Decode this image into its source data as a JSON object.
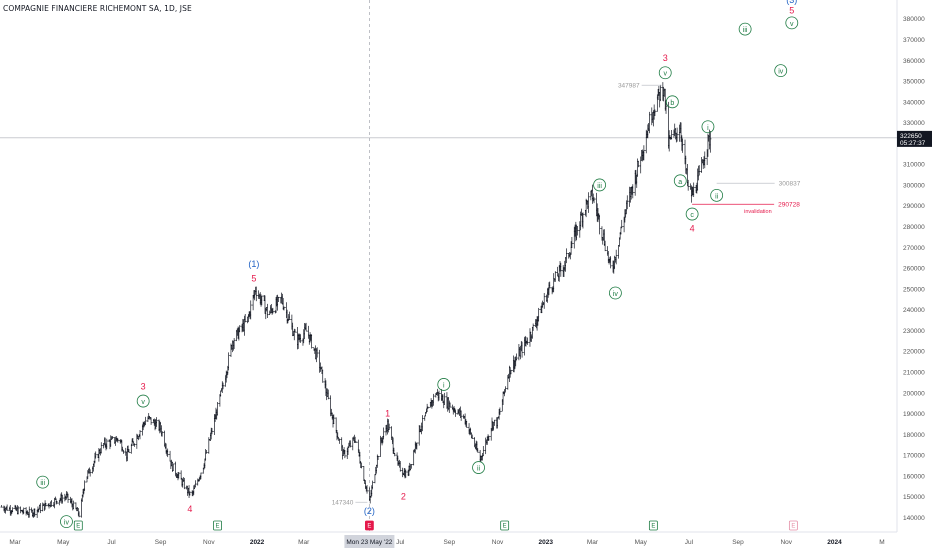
{
  "header": {
    "title": "COMPAGNIE FINANCIERE RICHEMONT SA, 1D, JSE"
  },
  "price_tag": {
    "price": "322650",
    "countdown": "05:27:37"
  },
  "colors": {
    "wave_red": "#e5194b",
    "wave_green": "#1e7b43",
    "wave_blue": "#2162c4",
    "bar": "#131722",
    "axis_text": "#555555",
    "invalidation": "#e5194b"
  },
  "chart_data": {
    "type": "ohlc",
    "x_axis_type": "date",
    "xlim": [
      "2021-02-10",
      "2024-03-20"
    ],
    "ylim": [
      133000,
      389000
    ],
    "y_ticks": [
      140000,
      150000,
      160000,
      170000,
      180000,
      190000,
      200000,
      210000,
      220000,
      230000,
      240000,
      250000,
      260000,
      270000,
      280000,
      290000,
      300000,
      310000,
      320000,
      330000,
      340000,
      350000,
      360000,
      370000,
      380000
    ],
    "x_ticks": [
      {
        "label": "Mar",
        "date": "2021-03-01"
      },
      {
        "label": "May",
        "date": "2021-05-01"
      },
      {
        "label": "Jul",
        "date": "2021-07-01"
      },
      {
        "label": "Sep",
        "date": "2021-09-01"
      },
      {
        "label": "Nov",
        "date": "2021-11-01"
      },
      {
        "label": "2022",
        "date": "2022-01-01",
        "bold": true
      },
      {
        "label": "Mar",
        "date": "2022-03-01"
      },
      {
        "label": "Jul",
        "date": "2022-07-01"
      },
      {
        "label": "Sep",
        "date": "2022-09-01"
      },
      {
        "label": "Nov",
        "date": "2022-11-01"
      },
      {
        "label": "2023",
        "date": "2023-01-01",
        "bold": true
      },
      {
        "label": "Mar",
        "date": "2023-03-01"
      },
      {
        "label": "May",
        "date": "2023-05-01"
      },
      {
        "label": "Jul",
        "date": "2023-07-01"
      },
      {
        "label": "Sep",
        "date": "2023-09-01"
      },
      {
        "label": "Nov",
        "date": "2023-11-01"
      },
      {
        "label": "2024",
        "date": "2024-01-01",
        "bold": true
      },
      {
        "label": "M",
        "date": "2024-03-01"
      }
    ],
    "crosshair": {
      "date": "2022-05-23",
      "label": "Mon 23 May '22",
      "price": 322650
    },
    "price_path": [
      [
        "2021-02-12",
        145000
      ],
      [
        "2021-03-20",
        142000
      ],
      [
        "2021-04-20",
        148000
      ],
      [
        "2021-05-05",
        150000
      ],
      [
        "2021-05-22",
        141000
      ],
      [
        "2021-05-28",
        158000
      ],
      [
        "2021-06-20",
        175000
      ],
      [
        "2021-07-10",
        178000
      ],
      [
        "2021-07-20",
        170000
      ],
      [
        "2021-08-15",
        188000
      ],
      [
        "2021-09-01",
        183000
      ],
      [
        "2021-09-15",
        165000
      ],
      [
        "2021-10-10",
        150000
      ],
      [
        "2021-10-25",
        165000
      ],
      [
        "2021-11-20",
        205000
      ],
      [
        "2021-12-01",
        225000
      ],
      [
        "2021-12-20",
        235000
      ],
      [
        "2021-12-30",
        250000
      ],
      [
        "2022-01-15",
        238000
      ],
      [
        "2022-02-01",
        245000
      ],
      [
        "2022-02-20",
        225000
      ],
      [
        "2022-03-05",
        230000
      ],
      [
        "2022-03-20",
        215000
      ],
      [
        "2022-04-05",
        190000
      ],
      [
        "2022-04-20",
        170000
      ],
      [
        "2022-05-05",
        178000
      ],
      [
        "2022-05-23",
        147340
      ],
      [
        "2022-06-05",
        175000
      ],
      [
        "2022-06-15",
        185000
      ],
      [
        "2022-06-28",
        165000
      ],
      [
        "2022-07-10",
        160000
      ],
      [
        "2022-07-25",
        182000
      ],
      [
        "2022-08-15",
        200000
      ],
      [
        "2022-08-30",
        195000
      ],
      [
        "2022-09-20",
        188000
      ],
      [
        "2022-10-10",
        168000
      ],
      [
        "2022-10-25",
        185000
      ],
      [
        "2022-11-01",
        186000
      ],
      [
        "2022-11-15",
        210000
      ],
      [
        "2022-11-30",
        220000
      ],
      [
        "2022-12-15",
        230000
      ],
      [
        "2023-01-05",
        250000
      ],
      [
        "2023-01-25",
        262000
      ],
      [
        "2023-02-20",
        290000
      ],
      [
        "2023-03-01",
        295000
      ],
      [
        "2023-03-15",
        275000
      ],
      [
        "2023-03-25",
        258000
      ],
      [
        "2023-04-10",
        285000
      ],
      [
        "2023-04-25",
        305000
      ],
      [
        "2023-05-15",
        335000
      ],
      [
        "2023-05-30",
        347987
      ],
      [
        "2023-06-05",
        320000
      ],
      [
        "2023-06-20",
        328000
      ],
      [
        "2023-06-30",
        298000
      ],
      [
        "2023-07-05",
        295000
      ],
      [
        "2023-07-15",
        305000
      ],
      [
        "2023-07-22",
        318000
      ],
      [
        "2023-07-28",
        322650
      ]
    ],
    "wave_labels": [
      {
        "text": "iii",
        "date": "2021-04-05",
        "price": 157000,
        "color": "green",
        "circle": true
      },
      {
        "text": "iv",
        "date": "2021-05-05",
        "price": 138000,
        "color": "green",
        "circle": true
      },
      {
        "text": "3",
        "date": "2021-08-10",
        "price": 203000,
        "color": "red"
      },
      {
        "text": "v",
        "date": "2021-08-10",
        "price": 196000,
        "color": "green",
        "circle": true
      },
      {
        "text": "4",
        "date": "2021-10-08",
        "price": 144000,
        "color": "red"
      },
      {
        "text": "(1)",
        "date": "2021-12-28",
        "price": 262000,
        "color": "blue"
      },
      {
        "text": "5",
        "date": "2021-12-28",
        "price": 255000,
        "color": "red"
      },
      {
        "text": "1",
        "date": "2022-06-15",
        "price": 190000,
        "color": "red"
      },
      {
        "text": "2",
        "date": "2022-07-05",
        "price": 150000,
        "color": "red"
      },
      {
        "text": "(2)",
        "date": "2022-05-23",
        "price": 143000,
        "color": "blue"
      },
      {
        "text": "i",
        "date": "2022-08-25",
        "price": 204000,
        "color": "green",
        "circle": true
      },
      {
        "text": "ii",
        "date": "2022-10-08",
        "price": 164000,
        "color": "green",
        "circle": true
      },
      {
        "text": "iii",
        "date": "2023-03-10",
        "price": 300000,
        "color": "green",
        "circle": true
      },
      {
        "text": "iv",
        "date": "2023-03-30",
        "price": 248000,
        "color": "green",
        "circle": true
      },
      {
        "text": "3",
        "date": "2023-06-01",
        "price": 361000,
        "color": "red"
      },
      {
        "text": "v",
        "date": "2023-06-01",
        "price": 354000,
        "color": "green",
        "circle": true
      },
      {
        "text": "b",
        "date": "2023-06-10",
        "price": 340000,
        "color": "green",
        "circle": true
      },
      {
        "text": "a",
        "date": "2023-06-20",
        "price": 302000,
        "color": "green",
        "circle": true
      },
      {
        "text": "c",
        "date": "2023-07-05",
        "price": 286000,
        "color": "green",
        "circle": true
      },
      {
        "text": "4",
        "date": "2023-07-05",
        "price": 279000,
        "color": "red"
      },
      {
        "text": "i",
        "date": "2023-07-25",
        "price": 328000,
        "color": "green",
        "circle": true
      },
      {
        "text": "ii",
        "date": "2023-08-05",
        "price": 295000,
        "color": "green",
        "circle": true
      },
      {
        "text": "iii",
        "date": "2023-09-10",
        "price": 375000,
        "color": "green",
        "circle": true
      },
      {
        "text": "iv",
        "date": "2023-10-25",
        "price": 355000,
        "color": "green",
        "circle": true
      },
      {
        "text": "(3)",
        "date": "2023-11-08",
        "price": 389000,
        "color": "blue"
      },
      {
        "text": "5",
        "date": "2023-11-08",
        "price": 384000,
        "color": "red"
      },
      {
        "text": "v",
        "date": "2023-11-08",
        "price": 378000,
        "color": "green",
        "circle": true
      }
    ],
    "level_notes": [
      {
        "text": "147340",
        "price": 147340,
        "date": "2022-05-23",
        "color": "gray"
      },
      {
        "text": "347987",
        "price": 347987,
        "date": "2023-05-30",
        "color": "gray"
      },
      {
        "text": "300837",
        "price": 300837,
        "date": "2023-08-05",
        "color": "gray"
      },
      {
        "text": "290728",
        "price": 290728,
        "date": "2023-07-05",
        "color": "red"
      }
    ],
    "annotations": [
      {
        "text": "invalidation",
        "price": 290728,
        "date": "2023-07-05"
      }
    ],
    "earnings_markers": [
      {
        "date": "2021-05-20",
        "label": "E",
        "color": "green"
      },
      {
        "date": "2021-11-12",
        "label": "E",
        "color": "green"
      },
      {
        "date": "2022-05-23",
        "label": "E",
        "color": "red"
      },
      {
        "date": "2022-11-10",
        "label": "E",
        "color": "green"
      },
      {
        "date": "2023-05-17",
        "label": "E",
        "color": "green"
      },
      {
        "date": "2023-11-10",
        "label": "E",
        "color": "pink"
      }
    ]
  }
}
